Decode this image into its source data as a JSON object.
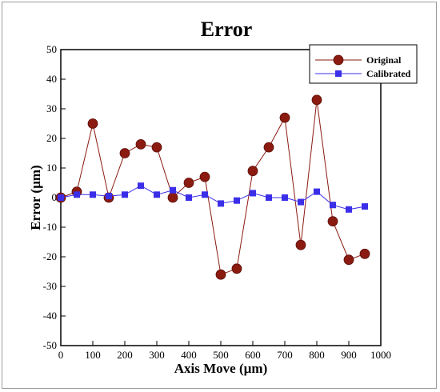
{
  "chart_data": {
    "type": "line",
    "title": "Error",
    "xlabel": "Axis Move (µm)",
    "ylabel": "Error (µm)",
    "xlim": [
      0,
      1000
    ],
    "ylim": [
      -50,
      50
    ],
    "xticks": [
      0,
      100,
      200,
      300,
      400,
      500,
      600,
      700,
      800,
      900,
      1000
    ],
    "yticks": [
      -50,
      -40,
      -30,
      -20,
      -10,
      0,
      10,
      20,
      30,
      40,
      50
    ],
    "grid": false,
    "legend_position": "top-right",
    "series": [
      {
        "name": "Original",
        "color": "#8b1a10",
        "marker": "circle",
        "x": [
          0,
          50,
          100,
          150,
          200,
          250,
          300,
          350,
          400,
          450,
          500,
          550,
          600,
          650,
          700,
          750,
          800,
          850,
          900,
          950
        ],
        "y": [
          0,
          2,
          25,
          0,
          15,
          18,
          17,
          0,
          5,
          7,
          -26,
          -24,
          9,
          17,
          27,
          -16,
          33,
          -8,
          -21,
          -19
        ]
      },
      {
        "name": "Calibrated",
        "color": "#3b2ee8",
        "marker": "square",
        "x": [
          0,
          50,
          100,
          150,
          200,
          250,
          300,
          350,
          400,
          450,
          500,
          550,
          600,
          650,
          700,
          750,
          800,
          850,
          900,
          950
        ],
        "y": [
          0,
          1,
          1,
          0.5,
          1,
          4,
          1,
          2.5,
          0,
          1,
          -2,
          -1,
          1.5,
          0,
          0,
          -1.5,
          2,
          -2.5,
          -4,
          -3
        ]
      }
    ]
  }
}
